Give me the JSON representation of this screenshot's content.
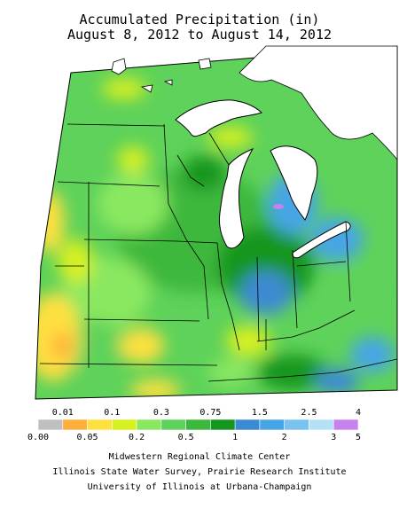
{
  "title_line1": "Accumulated Precipitation (in)",
  "title_line2": "August 8, 2012 to August 14, 2012",
  "legend": {
    "colors": [
      "#c0c0c0",
      "#ffb03c",
      "#ffe040",
      "#d7f020",
      "#8ae860",
      "#5ed25a",
      "#3cb83c",
      "#15961e",
      "#3c8ad2",
      "#46a5e6",
      "#78c3f0",
      "#b4e1f8",
      "#c882f0"
    ],
    "top_labels": [
      "0.01",
      "0.1",
      "0.3",
      "0.75",
      "1.5",
      "2.5",
      "4"
    ],
    "bottom_labels": [
      "0.00",
      "0.05",
      "0.2",
      "0.5",
      "1",
      "2",
      "3",
      "5"
    ]
  },
  "credits": {
    "line1": "Midwestern Regional Climate Center",
    "line2": "Illinois State Water Survey, Prairie Research Institute",
    "line3": "University of Illinois at Urbana-Champaign"
  }
}
